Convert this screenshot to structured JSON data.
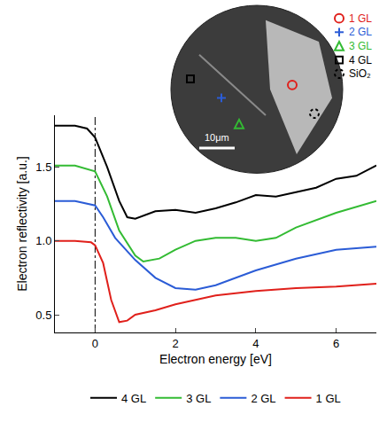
{
  "chart_data": {
    "type": "line",
    "x_label": "Electron energy [eV]",
    "y_label": "Electron reflectivity [a.u.]",
    "xlim": [
      -1,
      7
    ],
    "xticks": [
      0,
      2,
      4,
      6
    ],
    "ylim": [
      0.38,
      1.85
    ],
    "yticks": [
      0.5,
      {
        "value": 1,
        "label": "1.0"
      },
      1.5
    ],
    "grid": false,
    "legend": "bottom",
    "reference_line": {
      "x": 0,
      "line_style": "dashdot"
    },
    "series": [
      {
        "name": "4 GL",
        "color": "#000000",
        "x": [
          -1,
          -0.5,
          -0.2,
          0,
          0.3,
          0.6,
          0.8,
          1,
          1.5,
          2,
          2.5,
          3,
          3.5,
          4,
          4.5,
          5,
          5.5,
          6,
          6.5,
          7
        ],
        "values": [
          1.78,
          1.78,
          1.76,
          1.7,
          1.5,
          1.27,
          1.16,
          1.15,
          1.2,
          1.21,
          1.19,
          1.22,
          1.26,
          1.31,
          1.3,
          1.33,
          1.36,
          1.42,
          1.44,
          1.51
        ]
      },
      {
        "name": "3 GL",
        "color": "#33bb33",
        "x": [
          -1,
          -0.5,
          0,
          0.3,
          0.6,
          1,
          1.2,
          1.6,
          2,
          2.5,
          3,
          3.5,
          4,
          4.5,
          5,
          6,
          7
        ],
        "values": [
          1.51,
          1.51,
          1.47,
          1.3,
          1.07,
          0.9,
          0.86,
          0.88,
          0.94,
          1.0,
          1.02,
          1.02,
          1.0,
          1.02,
          1.09,
          1.19,
          1.27
        ]
      },
      {
        "name": "2 GL",
        "color": "#2b5cd6",
        "x": [
          -1,
          -0.5,
          0,
          0.2,
          0.5,
          1,
          1.5,
          2,
          2.5,
          3,
          4,
          5,
          6,
          7
        ],
        "values": [
          1.27,
          1.27,
          1.24,
          1.16,
          1.02,
          0.87,
          0.75,
          0.68,
          0.67,
          0.7,
          0.8,
          0.88,
          0.94,
          0.96
        ]
      },
      {
        "name": "1 GL",
        "color": "#e0201b",
        "x": [
          -1,
          -0.5,
          -0.1,
          0,
          0.2,
          0.4,
          0.6,
          0.8,
          1,
          1.5,
          2,
          3,
          4,
          5,
          6,
          7
        ],
        "values": [
          1.0,
          1.0,
          0.99,
          0.97,
          0.85,
          0.6,
          0.45,
          0.46,
          0.5,
          0.53,
          0.57,
          0.63,
          0.66,
          0.68,
          0.69,
          0.71
        ]
      }
    ],
    "inset": {
      "type": "micrograph",
      "labels": [
        {
          "text": "1 GL",
          "color": "#e0201b",
          "marker": "circle"
        },
        {
          "text": "2 GL",
          "color": "#2b5cd6",
          "marker": "cross"
        },
        {
          "text": "3 GL",
          "color": "#33bb33",
          "marker": "triangle"
        },
        {
          "text": "4 GL",
          "color": "#000000",
          "marker": "square"
        },
        {
          "text": "SiO₂",
          "color": "#000000",
          "marker": "dotted_circle"
        }
      ],
      "scale_bar": "10μm"
    }
  }
}
